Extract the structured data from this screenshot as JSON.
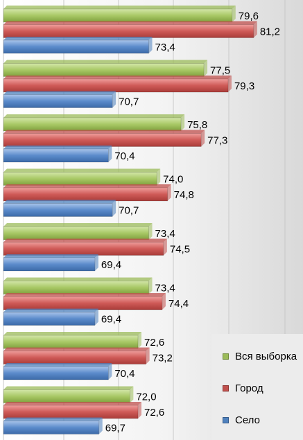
{
  "chart_data": {
    "type": "bar",
    "orientation": "horizontal",
    "categories": [
      "",
      "",
      "",
      "",
      "",
      "",
      "",
      ""
    ],
    "series": [
      {
        "name": "Вся выборка",
        "color": "#9bbb59",
        "values": [
          79.6,
          77.5,
          75.8,
          74.0,
          73.4,
          73.4,
          72.6,
          72.0
        ],
        "labels": [
          "79,6",
          "77,5",
          "75,8",
          "74,0",
          "73,4",
          "73,4",
          "72,6",
          "72,0"
        ]
      },
      {
        "name": "Город",
        "color": "#c0504d",
        "values": [
          81.2,
          79.3,
          77.3,
          74.8,
          74.5,
          74.4,
          73.2,
          72.6
        ],
        "labels": [
          "81,2",
          "79,3",
          "77,3",
          "74,8",
          "74,5",
          "74,4",
          "73,2",
          "72,6"
        ]
      },
      {
        "name": "Село",
        "color": "#4f81bd",
        "values": [
          73.4,
          70.7,
          70.4,
          70.7,
          69.4,
          69.4,
          70.4,
          69.7
        ],
        "labels": [
          "73,4",
          "70,7",
          "70,4",
          "70,7",
          "69,4",
          "69,4",
          "70,4",
          "69,7"
        ]
      }
    ],
    "xlim": [
      62.6,
      85.0
    ],
    "grid": true,
    "legend_position": "bottom-right"
  }
}
